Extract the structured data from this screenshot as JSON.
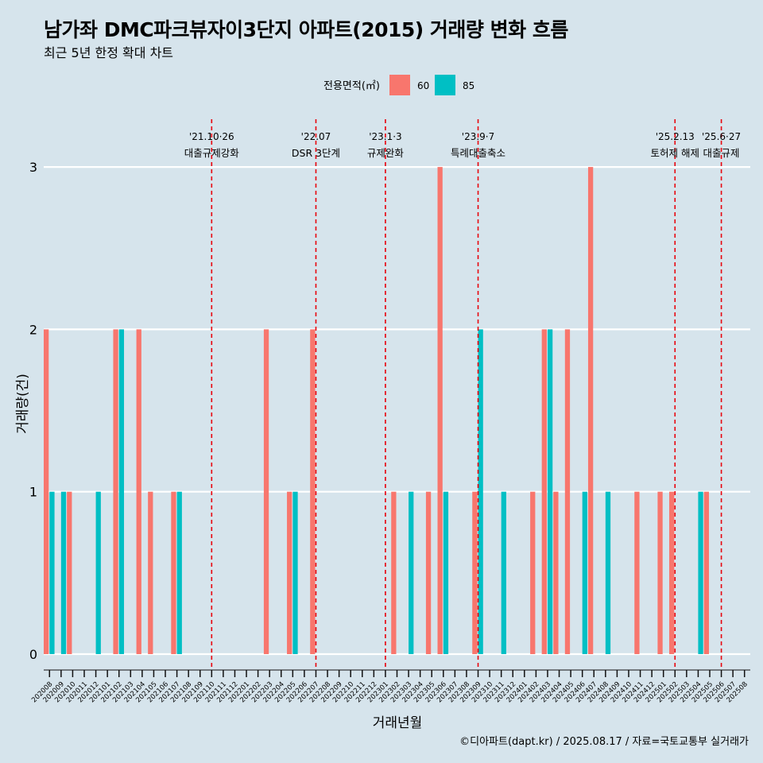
{
  "title": "남가좌 DMC파크뷰자이3단지 아파트(2015) 거래량 변화 흐름",
  "subtitle": "최근 5년 한정 확대 차트",
  "caption": "©디아파트(dapt.kr) / 2025.08.17 / 자료=국토교통부 실거래가",
  "chart_data": {
    "type": "bar",
    "xlabel": "거래년월",
    "ylabel": "거래량(건)",
    "ylim": [
      0,
      3
    ],
    "yticks": [
      "0",
      "1",
      "2",
      "3"
    ],
    "legend": {
      "title": "전용면적(㎡)",
      "position": "top"
    },
    "categories": [
      "202008",
      "202009",
      "202010",
      "202011",
      "202012",
      "202101",
      "202102",
      "202103",
      "202104",
      "202105",
      "202106",
      "202107",
      "202108",
      "202109",
      "202110",
      "202111",
      "202112",
      "202201",
      "202202",
      "202203",
      "202204",
      "202205",
      "202206",
      "202207",
      "202208",
      "202209",
      "202210",
      "202211",
      "202212",
      "202301",
      "202302",
      "202303",
      "202304",
      "202305",
      "202306",
      "202307",
      "202308",
      "202309",
      "202310",
      "202311",
      "202312",
      "202401",
      "202402",
      "202403",
      "202404",
      "202405",
      "202406",
      "202407",
      "202408",
      "202409",
      "202410",
      "202411",
      "202412",
      "202501",
      "202502",
      "202503",
      "202504",
      "202505",
      "202506",
      "202507",
      "202508"
    ],
    "series": [
      {
        "name": "60",
        "color": "#f8766d",
        "values": [
          2,
          0,
          1,
          0,
          0,
          0,
          2,
          0,
          2,
          1,
          0,
          1,
          0,
          0,
          0,
          0,
          0,
          0,
          0,
          2,
          0,
          1,
          0,
          2,
          0,
          0,
          0,
          0,
          0,
          0,
          1,
          0,
          0,
          1,
          3,
          0,
          0,
          1,
          0,
          0,
          0,
          0,
          1,
          2,
          1,
          2,
          0,
          3,
          0,
          0,
          0,
          1,
          0,
          1,
          1,
          0,
          0,
          1,
          0,
          0,
          0
        ]
      },
      {
        "name": "85",
        "color": "#00bfc4",
        "values": [
          1,
          1,
          0,
          0,
          1,
          0,
          2,
          0,
          0,
          0,
          0,
          1,
          0,
          0,
          0,
          0,
          0,
          0,
          0,
          0,
          0,
          1,
          0,
          0,
          0,
          0,
          0,
          0,
          0,
          0,
          0,
          1,
          0,
          0,
          1,
          0,
          0,
          2,
          0,
          1,
          0,
          0,
          0,
          2,
          0,
          0,
          1,
          0,
          1,
          0,
          0,
          0,
          0,
          0,
          0,
          0,
          1,
          0,
          0,
          0,
          0
        ]
      }
    ],
    "annotations": [
      {
        "category": "202110",
        "date": "'21.10·26",
        "label": "대출규제강화"
      },
      {
        "category": "202207",
        "date": "'22.07",
        "label": "DSR 3단계"
      },
      {
        "category": "202301",
        "date": "'23.1·3",
        "label": "규제완화"
      },
      {
        "category": "202309",
        "date": "'23.9·7",
        "label": "특례대출축소"
      },
      {
        "category": "202502",
        "date": "'25.2.13",
        "label": "토허제 해제"
      },
      {
        "category": "202506",
        "date": "'25.6·27",
        "label": "대출규제"
      }
    ]
  }
}
